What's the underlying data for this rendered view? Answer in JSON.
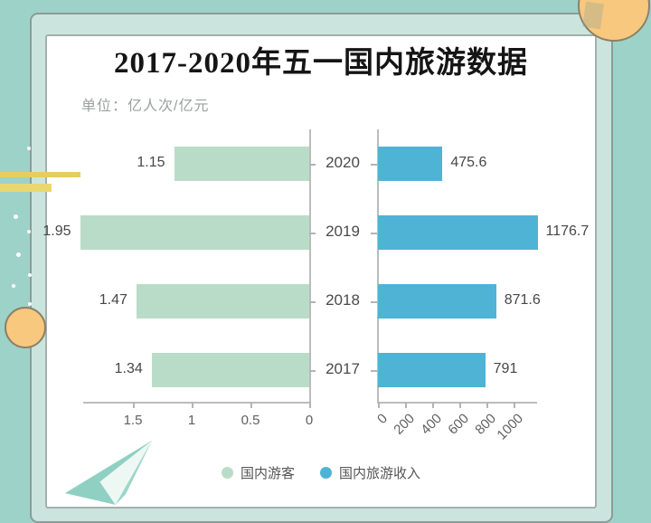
{
  "title": "2017-2020年五一国内旅游数据",
  "unit_label": "单位：亿人次/亿元",
  "legend": {
    "tourists_label": "国内游客",
    "revenue_label": "国内旅游收入"
  },
  "colors": {
    "background_teal": "#9dd2c8",
    "frame_fill": "#cbe5de",
    "tourists_green": "#b9dcc8",
    "revenue_blue": "#4fb3d5",
    "accent_yellow": "#e9d269",
    "accent_orange": "#f8c87e"
  },
  "chart_data": {
    "type": "bar",
    "orientation": "horizontal-diverging",
    "title": "2017-2020年五一国内旅游数据",
    "unit": "亿人次/亿元",
    "categories": [
      "2020",
      "2019",
      "2018",
      "2017"
    ],
    "series": [
      {
        "name": "国内游客",
        "side": "left",
        "color": "#b9dcc8",
        "values": [
          1.15,
          1.95,
          1.47,
          1.34
        ],
        "axis_ticks": [
          1.5,
          1,
          0.5,
          0
        ],
        "xlim": [
          0,
          2.0
        ],
        "tick_rotation": 0
      },
      {
        "name": "国内旅游收入",
        "side": "right",
        "color": "#4fb3d5",
        "values": [
          475.6,
          1176.7,
          871.6,
          791
        ],
        "axis_ticks": [
          0,
          200,
          400,
          600,
          800,
          1000
        ],
        "xlim": [
          0,
          1200
        ],
        "tick_rotation": 45
      }
    ],
    "legend": [
      "国内游客",
      "国内旅游收入"
    ],
    "legend_position": "bottom",
    "grid": false,
    "value_labels_shown": true
  }
}
